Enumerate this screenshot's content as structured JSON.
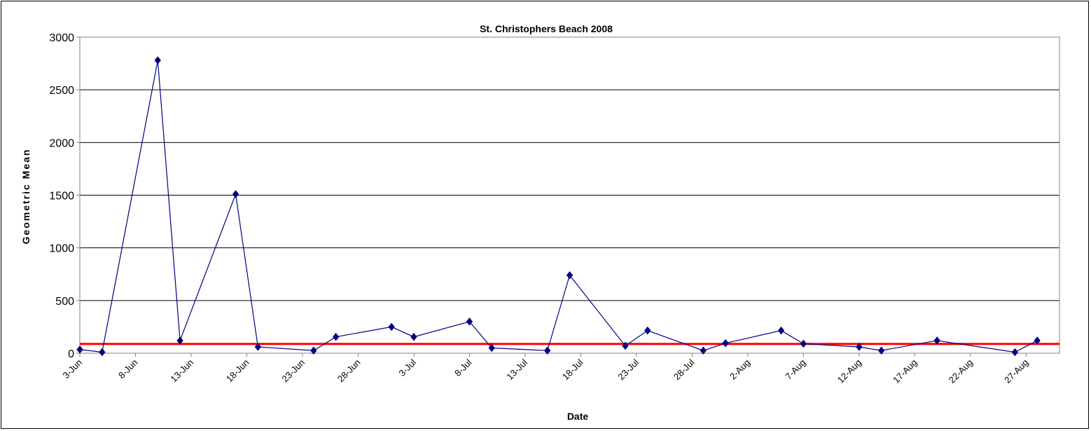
{
  "chart_data": {
    "type": "line",
    "title": "St. Christophers Beach 2008",
    "xlabel": "Date",
    "ylabel": "Geometric Mean",
    "ylim": [
      0,
      3000
    ],
    "yticks": [
      0,
      500,
      1000,
      1500,
      2000,
      2500,
      3000
    ],
    "x_range": [
      "2008-06-03",
      "2008-08-30"
    ],
    "xtick_dates": [
      "2008-06-03",
      "2008-06-08",
      "2008-06-13",
      "2008-06-18",
      "2008-06-23",
      "2008-06-28",
      "2008-07-03",
      "2008-07-08",
      "2008-07-13",
      "2008-07-18",
      "2008-07-23",
      "2008-07-28",
      "2008-08-02",
      "2008-08-07",
      "2008-08-12",
      "2008-08-17",
      "2008-08-22",
      "2008-08-27"
    ],
    "xtick_labels": [
      "3-Jun",
      "8-Jun",
      "13-Jun",
      "18-Jun",
      "23-Jun",
      "28-Jun",
      "3-Jul",
      "8-Jul",
      "13-Jul",
      "18-Jul",
      "23-Jul",
      "28-Jul",
      "2-Aug",
      "7-Aug",
      "12-Aug",
      "17-Aug",
      "22-Aug",
      "27-Aug"
    ],
    "grid": "horizontal",
    "series": [
      {
        "color": "#000080",
        "marker": "diamond",
        "points": [
          {
            "x": "2008-06-03",
            "y": 35
          },
          {
            "x": "2008-06-05",
            "y": 10
          },
          {
            "x": "2008-06-10",
            "y": 2780
          },
          {
            "x": "2008-06-12",
            "y": 120
          },
          {
            "x": "2008-06-17",
            "y": 1510
          },
          {
            "x": "2008-06-19",
            "y": 60
          },
          {
            "x": "2008-06-24",
            "y": 25
          },
          {
            "x": "2008-06-26",
            "y": 155
          },
          {
            "x": "2008-07-01",
            "y": 250
          },
          {
            "x": "2008-07-03",
            "y": 155
          },
          {
            "x": "2008-07-08",
            "y": 300
          },
          {
            "x": "2008-07-10",
            "y": 50
          },
          {
            "x": "2008-07-15",
            "y": 25
          },
          {
            "x": "2008-07-17",
            "y": 740
          },
          {
            "x": "2008-07-22",
            "y": 70
          },
          {
            "x": "2008-07-24",
            "y": 215
          },
          {
            "x": "2008-07-29",
            "y": 25
          },
          {
            "x": "2008-07-31",
            "y": 95
          },
          {
            "x": "2008-08-05",
            "y": 215
          },
          {
            "x": "2008-08-07",
            "y": 90
          },
          {
            "x": "2008-08-12",
            "y": 60
          },
          {
            "x": "2008-08-14",
            "y": 25
          },
          {
            "x": "2008-08-19",
            "y": 120
          },
          {
            "x": "2008-08-26",
            "y": 10
          },
          {
            "x": "2008-08-28",
            "y": 120
          }
        ]
      }
    ],
    "reference_line": {
      "y": 88,
      "color": "#ff0000"
    }
  }
}
